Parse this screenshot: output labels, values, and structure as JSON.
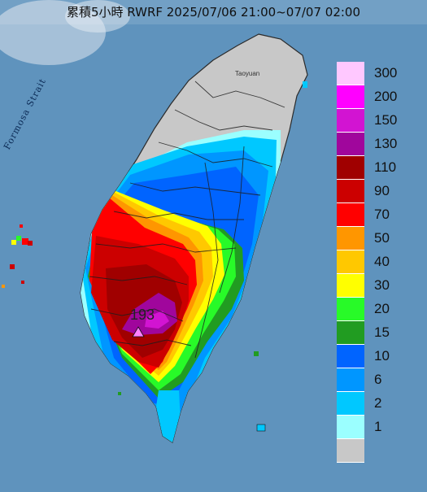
{
  "title": "累積5小時 RWRF 2025/07/06 21:00~07/07 02:00",
  "map_labels": {
    "strait": "Formosa Strait",
    "city": "Taoyuan",
    "max_value": "193"
  },
  "legend": {
    "items": [
      {
        "label": "300",
        "color": "#ffc8ff"
      },
      {
        "label": "200",
        "color": "#ff00ff"
      },
      {
        "label": "150",
        "color": "#d214d2"
      },
      {
        "label": "130",
        "color": "#a0069c"
      },
      {
        "label": "110",
        "color": "#a00000"
      },
      {
        "label": "90",
        "color": "#cc0000"
      },
      {
        "label": "70",
        "color": "#ff0000"
      },
      {
        "label": "50",
        "color": "#ff9600"
      },
      {
        "label": "40",
        "color": "#ffc800"
      },
      {
        "label": "30",
        "color": "#ffff00"
      },
      {
        "label": "20",
        "color": "#28fa28"
      },
      {
        "label": "15",
        "color": "#219c21"
      },
      {
        "label": "10",
        "color": "#0064ff"
      },
      {
        "label": "6",
        "color": "#0096ff"
      },
      {
        "label": "2",
        "color": "#00c8ff"
      },
      {
        "label": "1",
        "color": "#9bffff"
      },
      {
        "label": "",
        "color": "#c8c8c8"
      }
    ]
  }
}
